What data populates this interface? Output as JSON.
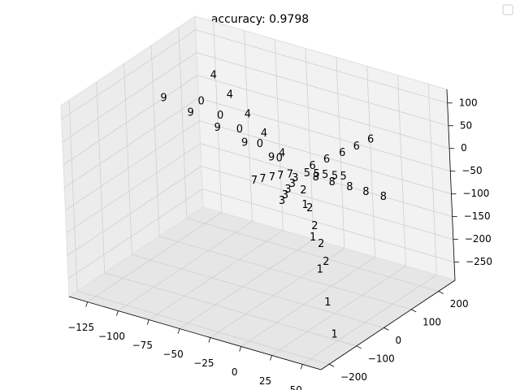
{
  "chart_data": {
    "type": "scatter3d",
    "title": "accuracy: 0.9798",
    "xlim": [
      -140,
      65
    ],
    "ylim": [
      -230,
      260
    ],
    "zlim": [
      -290,
      130
    ],
    "xticks": [
      {
        "value": -125,
        "label": "−125"
      },
      {
        "value": -100,
        "label": "−100"
      },
      {
        "value": -75,
        "label": "−75"
      },
      {
        "value": -50,
        "label": "−50"
      },
      {
        "value": -25,
        "label": "−25"
      },
      0,
      25,
      50
    ],
    "yticks": [
      {
        "value": -200,
        "label": "−200"
      },
      {
        "value": -100,
        "label": "−100"
      },
      0,
      100,
      200
    ],
    "zticks": [
      {
        "value": -250,
        "label": "−250"
      },
      {
        "value": -200,
        "label": "−200"
      },
      {
        "value": -150,
        "label": "−150"
      },
      {
        "value": -100,
        "label": "−100"
      },
      {
        "value": -50,
        "label": "−50"
      },
      0,
      50,
      100
    ],
    "grid": true,
    "series": [
      {
        "name": "0",
        "color": "#8b1cf2",
        "x": [
          -15,
          -30,
          -46,
          -61,
          -76
        ],
        "y": [
          -1,
          -3,
          -4,
          -6,
          -7
        ],
        "z": [
          20,
          40,
          60,
          80,
          100
        ]
      },
      {
        "name": "1",
        "color": "#4a5cf2",
        "x": [
          9,
          19,
          28,
          38,
          47
        ],
        "y": [
          -20,
          -40,
          -59,
          -79,
          -99
        ],
        "z": [
          -56,
          -112,
          -168,
          -224,
          -280
        ]
      },
      {
        "name": "2",
        "color": "#c2d68a",
        "x": [
          6,
          13,
          19,
          26,
          32
        ],
        "y": [
          -11,
          -21,
          -32,
          -42,
          -53
        ],
        "z": [
          -30,
          -60,
          -90,
          -120,
          -150
        ]
      },
      {
        "name": "3",
        "color": "#22d8e0",
        "x": [
          0,
          0,
          -1,
          -1,
          -1
        ],
        "y": [
          -12,
          -23,
          -35,
          -46,
          -58
        ],
        "z": [
          -8,
          -16,
          -24,
          -32,
          -40
        ]
      },
      {
        "name": "4",
        "color": "#5cf5c4",
        "x": [
          -17,
          -35,
          -52,
          -70,
          -87
        ],
        "y": [
          18,
          35,
          53,
          70,
          88
        ],
        "z": [
          22,
          44,
          66,
          88,
          110
        ]
      },
      {
        "name": "5",
        "color": "#1e9af0",
        "x": [
          5,
          11,
          16,
          22,
          27
        ],
        "y": [
          9,
          17,
          26,
          34,
          43
        ],
        "z": [
          -1,
          -2,
          -3,
          -4,
          -5
        ]
      },
      {
        "name": "6",
        "color": "#96f49a",
        "x": [
          4,
          8,
          13,
          17,
          21
        ],
        "y": [
          34,
          68,
          103,
          137,
          171
        ],
        "z": [
          4,
          8,
          12,
          16,
          20
        ]
      },
      {
        "name": "7",
        "color": "#ff9a55",
        "x": [
          -4,
          -9,
          -13,
          -18,
          -22
        ],
        "y": [
          -13,
          -25,
          -38,
          -50,
          -63
        ],
        "z": [
          -2,
          -4,
          -6,
          -8,
          -10
        ]
      },
      {
        "name": "8",
        "color": "#ff5530",
        "x": [
          11,
          21,
          32,
          42,
          53
        ],
        "y": [
          14,
          28,
          42,
          56,
          70
        ],
        "z": [
          -8,
          -16,
          -24,
          -32,
          -40
        ]
      },
      {
        "name": "9",
        "color": "#ff0000",
        "x": [
          -20,
          -40,
          -60,
          -80,
          -100
        ],
        "y": [
          -7,
          -14,
          -22,
          -29,
          -36
        ],
        "z": [
          20,
          40,
          60,
          80,
          100
        ]
      }
    ]
  }
}
